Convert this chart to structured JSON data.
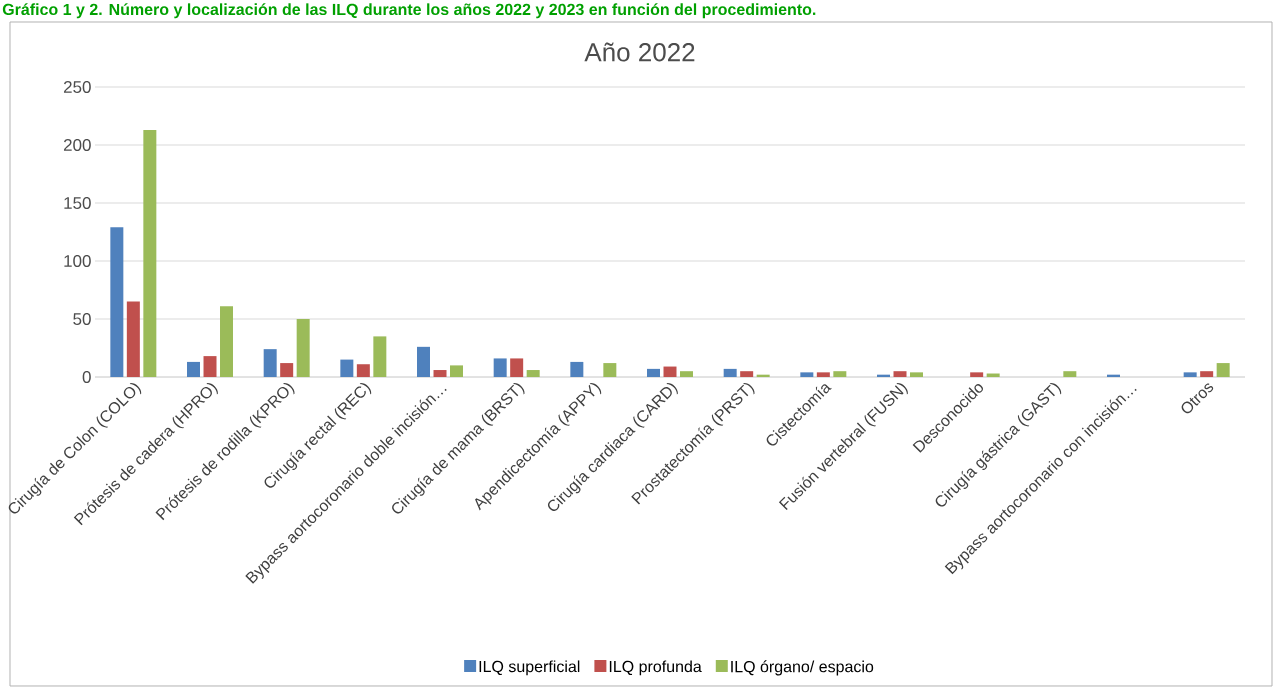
{
  "chart_data": {
    "type": "bar",
    "title": "Año 2022",
    "annotations": [
      "Gráfico 1 y 2. Número y localización de las ILQ durante los años 2022 y 2023 en función del procedimiento."
    ],
    "categories": [
      "Cirugía de Colon (COLO)",
      "Prótesis de cadera (HPRO)",
      "Prótesis de rodilla (KPRO)",
      "Cirugía rectal (REC)",
      "Bypass aortocoronario doble incisión…",
      "Cirugía de mama (BRST)",
      "Apendicectomía (APPY)",
      "Cirugía cardiaca (CARD)",
      "Prostatectomía (PRST)",
      "Cistectomía",
      "Fusión vertebral (FUSN)",
      "Desconocido",
      "Cirugía gástrica (GAST)",
      "Bypass aortocoronario con incisión…",
      "Otros"
    ],
    "series": [
      {
        "name": "ILQ superficial",
        "color": "#4f81bd",
        "values": [
          129,
          13,
          24,
          15,
          26,
          16,
          13,
          7,
          7,
          4,
          2,
          0,
          0,
          2,
          4
        ]
      },
      {
        "name": "ILQ profunda",
        "color": "#c0504d",
        "values": [
          65,
          18,
          12,
          11,
          6,
          16,
          0,
          9,
          5,
          4,
          5,
          4,
          0,
          0,
          5
        ]
      },
      {
        "name": "ILQ órgano/ espacio",
        "color": "#9bbb59",
        "values": [
          213,
          61,
          50,
          35,
          10,
          6,
          12,
          5,
          2,
          5,
          4,
          3,
          5,
          0,
          12
        ]
      }
    ],
    "ylim": [
      0,
      250
    ],
    "yticks": [
      0,
      50,
      100,
      150,
      200,
      250
    ],
    "grid": "y",
    "legend": "bottom"
  }
}
